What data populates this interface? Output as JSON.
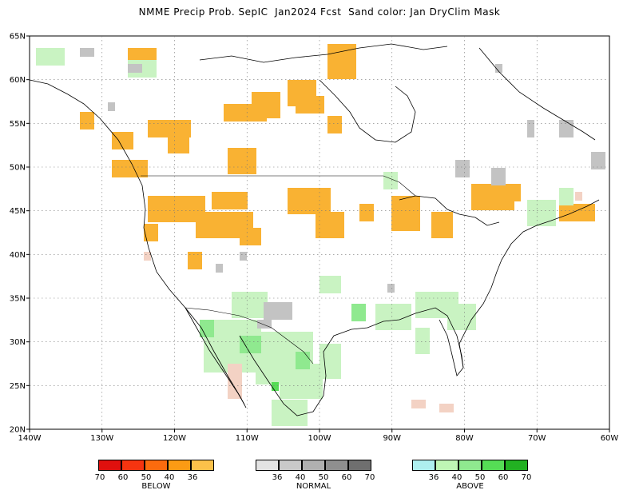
{
  "title": "NMME Precip Prob. SepIC  Jan2024 Fcst  Sand color: Jan DryClim Mask",
  "lat_labels": [
    "65N",
    "60N",
    "55N",
    "50N",
    "45N",
    "40N",
    "35N",
    "30N",
    "25N",
    "20N"
  ],
  "lon_labels": [
    "140W",
    "130W",
    "120W",
    "110W",
    "100W",
    "90W",
    "80W",
    "70W",
    "60W"
  ],
  "legend": {
    "below": {
      "caption": "BELOW",
      "colors": [
        "#e0100e",
        "#f53410",
        "#fb6b0e",
        "#fb9b14",
        "#fbc14a"
      ],
      "labels": [
        "70",
        "60",
        "50",
        "40",
        "36"
      ]
    },
    "normal": {
      "caption": "NORMAL",
      "colors": [
        "#e3e3e3",
        "#c9c9c9",
        "#b0b0b0",
        "#8f8f8f",
        "#6f6f6f"
      ],
      "labels": [
        "36",
        "40",
        "50",
        "60",
        "70"
      ]
    },
    "above": {
      "caption": "ABOVE",
      "colors": [
        "#aeefef",
        "#bff5b5",
        "#8fe98f",
        "#55dd55",
        "#22b122"
      ],
      "labels": [
        "36",
        "40",
        "50",
        "60",
        "70"
      ]
    }
  },
  "colors": {
    "below": "#f9b233",
    "above_light": "#c9f3c2",
    "above_mid": "#8fe98f",
    "above_dark": "#55dd55",
    "normal": "#c3c3c3",
    "dryclim": "#f3d2c4"
  }
}
